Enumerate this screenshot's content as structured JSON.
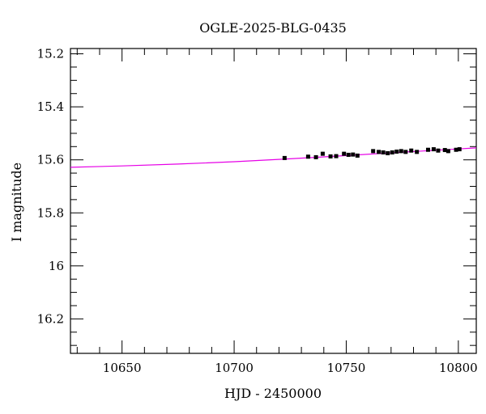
{
  "chart_data": {
    "type": "scatter",
    "title": "OGLE-2025-BLG-0435",
    "xlabel": "HJD - 2450000",
    "ylabel": "I magnitude",
    "xlim": [
      10627,
      10808
    ],
    "ylim": [
      16.33,
      15.18
    ],
    "y_inverted": true,
    "x_ticks": [
      10650,
      10700,
      10750,
      10800
    ],
    "x_tick_labels": [
      "10650",
      "10700",
      "10750",
      "10800"
    ],
    "y_ticks": [
      15.2,
      15.4,
      15.6,
      15.8,
      16,
      16.2
    ],
    "y_tick_labels": [
      "15.2",
      "15.4",
      "15.6",
      "15.8",
      "16",
      "16.2"
    ],
    "grid": false,
    "legend": "none",
    "series": [
      {
        "kind": "points_with_error_bars",
        "color": "#000000",
        "points": [
          {
            "x": 10722.5,
            "y": 15.593,
            "err": 0.007
          },
          {
            "x": 10733.0,
            "y": 15.588,
            "err": 0.007
          },
          {
            "x": 10736.5,
            "y": 15.59,
            "err": 0.007
          },
          {
            "x": 10739.5,
            "y": 15.577,
            "err": 0.007
          },
          {
            "x": 10743.0,
            "y": 15.587,
            "err": 0.007
          },
          {
            "x": 10745.5,
            "y": 15.586,
            "err": 0.007
          },
          {
            "x": 10749.0,
            "y": 15.577,
            "err": 0.007
          },
          {
            "x": 10751.0,
            "y": 15.581,
            "err": 0.007
          },
          {
            "x": 10753.0,
            "y": 15.58,
            "err": 0.007
          },
          {
            "x": 10755.0,
            "y": 15.584,
            "err": 0.007
          },
          {
            "x": 10762.0,
            "y": 15.567,
            "err": 0.007
          },
          {
            "x": 10764.5,
            "y": 15.57,
            "err": 0.007
          },
          {
            "x": 10766.5,
            "y": 15.572,
            "err": 0.007
          },
          {
            "x": 10768.5,
            "y": 15.575,
            "err": 0.007
          },
          {
            "x": 10770.5,
            "y": 15.572,
            "err": 0.007
          },
          {
            "x": 10772.5,
            "y": 15.569,
            "err": 0.007
          },
          {
            "x": 10774.5,
            "y": 15.567,
            "err": 0.007
          },
          {
            "x": 10776.5,
            "y": 15.57,
            "err": 0.007
          },
          {
            "x": 10779.0,
            "y": 15.565,
            "err": 0.007
          },
          {
            "x": 10781.5,
            "y": 15.57,
            "err": 0.007
          },
          {
            "x": 10786.5,
            "y": 15.562,
            "err": 0.007
          },
          {
            "x": 10789.0,
            "y": 15.56,
            "err": 0.007
          },
          {
            "x": 10791.0,
            "y": 15.565,
            "err": 0.007
          },
          {
            "x": 10794.0,
            "y": 15.563,
            "err": 0.007
          },
          {
            "x": 10795.5,
            "y": 15.567,
            "err": 0.007
          },
          {
            "x": 10799.0,
            "y": 15.562,
            "err": 0.007
          },
          {
            "x": 10800.5,
            "y": 15.56,
            "err": 0.007
          }
        ]
      },
      {
        "kind": "model_curve",
        "color": "#e600e6",
        "points": [
          {
            "x": 10627,
            "y": 15.628
          },
          {
            "x": 10650,
            "y": 15.623
          },
          {
            "x": 10675,
            "y": 15.616
          },
          {
            "x": 10700,
            "y": 15.607
          },
          {
            "x": 10725,
            "y": 15.596
          },
          {
            "x": 10750,
            "y": 15.584
          },
          {
            "x": 10775,
            "y": 15.571
          },
          {
            "x": 10800,
            "y": 15.559
          },
          {
            "x": 10808,
            "y": 15.555
          }
        ]
      }
    ]
  }
}
